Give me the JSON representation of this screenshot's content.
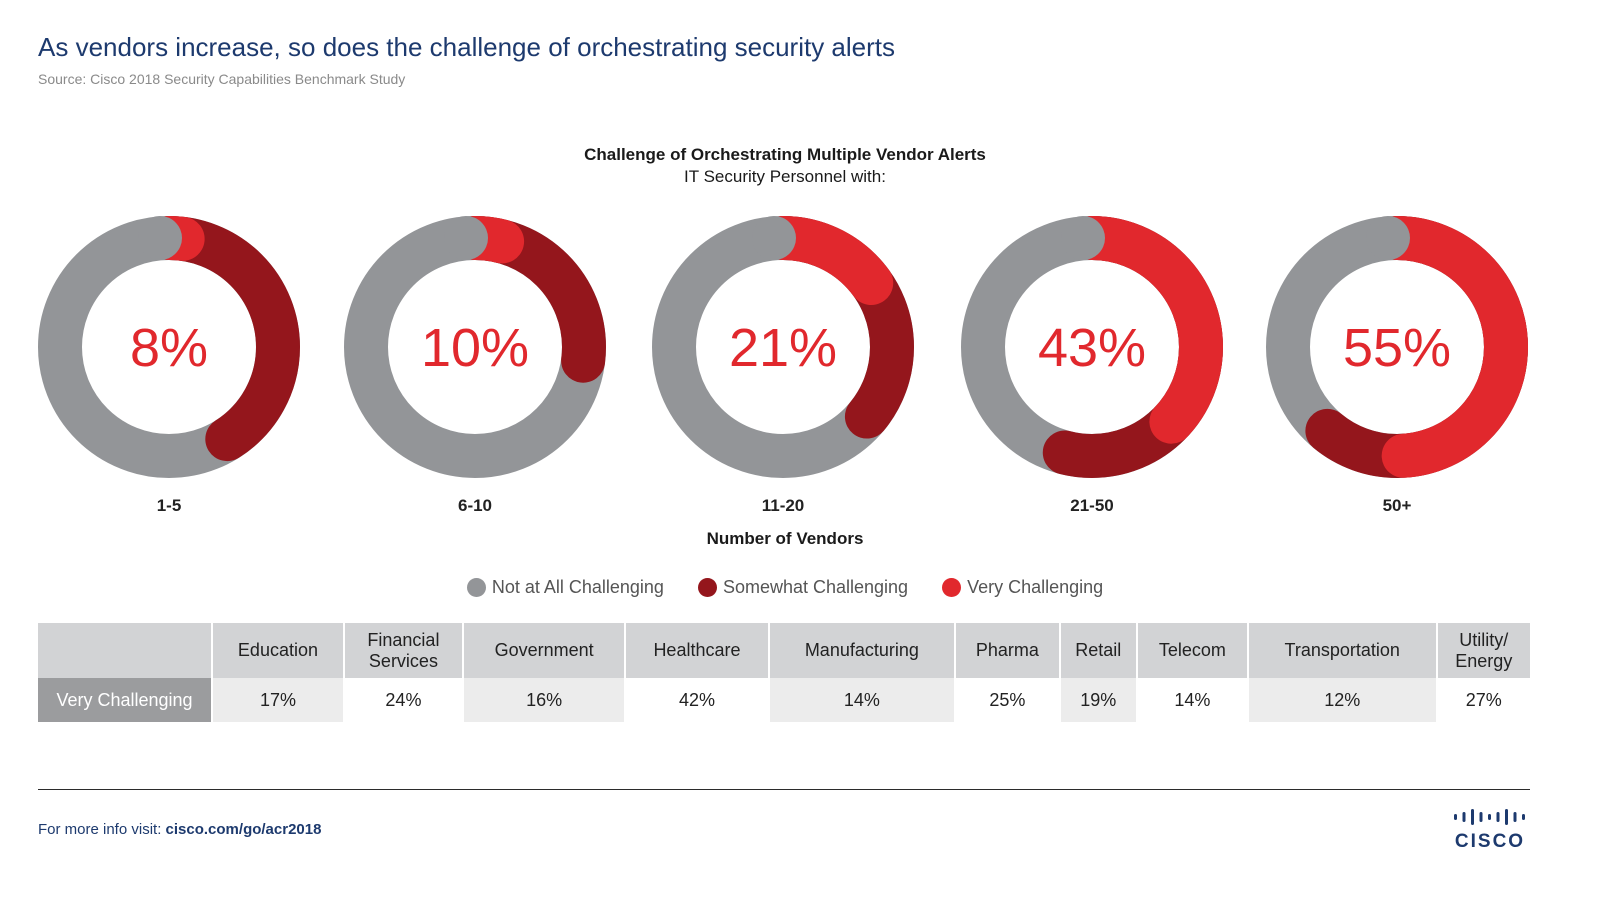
{
  "header": {
    "title": "As vendors increase, so does the challenge of orchestrating security alerts",
    "source": "Source: Cisco 2018 Security Capabilities Benchmark Study"
  },
  "chart_data": {
    "type": "donut",
    "title": "Challenge of Orchestrating Multiple Vendor Alerts",
    "subtitle": "IT Security Personnel with:",
    "xlabel": "Number of Vendors",
    "categories": [
      "1-5",
      "6-10",
      "11-20",
      "21-50",
      "50+"
    ],
    "center_labels": [
      "8%",
      "10%",
      "21%",
      "43%",
      "55%"
    ],
    "series": [
      {
        "name": "Very Challenging",
        "values": [
          8,
          10,
          21,
          43,
          55
        ]
      },
      {
        "name": "Somewhat Challenging",
        "values": [
          39,
          23,
          21,
          17,
          12
        ]
      },
      {
        "name": "Not at All Challenging",
        "values": [
          53,
          67,
          58,
          40,
          33
        ]
      }
    ],
    "legend": [
      "Not at All Challenging",
      "Somewhat Challenging",
      "Very Challenging"
    ],
    "legend_position": "bottom",
    "colors": {
      "Not at All Challenging": "#939598",
      "Somewhat Challenging": "#94161c",
      "Very Challenging": "#e1282d"
    }
  },
  "table": {
    "row_header": "Very Challenging",
    "columns": [
      [
        "Education"
      ],
      [
        "Financial",
        "Services"
      ],
      [
        "Government"
      ],
      [
        "Healthcare"
      ],
      [
        "Manufacturing"
      ],
      [
        "Pharma"
      ],
      [
        "Retail"
      ],
      [
        "Telecom"
      ],
      [
        "Transportation"
      ],
      [
        "Utility/",
        "Energy"
      ]
    ],
    "values": [
      "17%",
      "24%",
      "16%",
      "42%",
      "14%",
      "25%",
      "19%",
      "14%",
      "12%",
      "27%"
    ]
  },
  "footer": {
    "prefix": "For more info visit: ",
    "link": "cisco.com/go/acr2018",
    "logo": "CISCO"
  }
}
